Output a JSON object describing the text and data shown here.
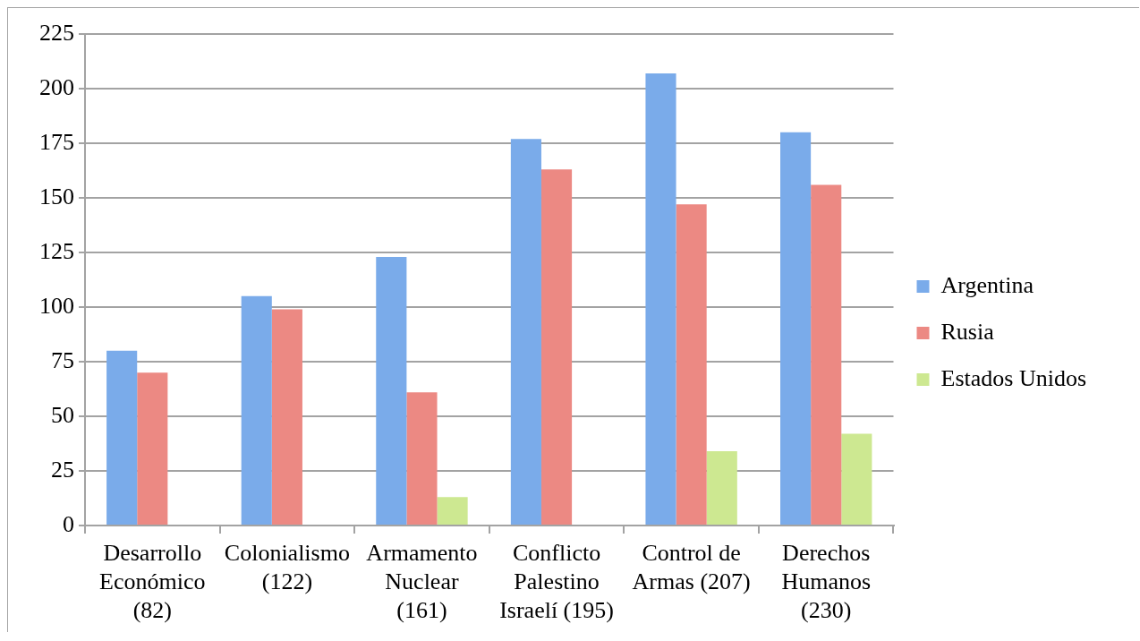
{
  "chart_data": {
    "type": "bar",
    "categories": [
      "Desarrollo Económico (82)",
      "Colonialismo (122)",
      "Armamento Nuclear (161)",
      "Conflicto Palestino Israelí (195)",
      "Control de Armas (207)",
      "Derechos Humanos (230)"
    ],
    "series": [
      {
        "name": "Argentina",
        "color": "#7aabea",
        "values": [
          80,
          105,
          123,
          177,
          207,
          180
        ]
      },
      {
        "name": "Rusia",
        "color": "#ec8983",
        "values": [
          70,
          99,
          61,
          163,
          147,
          156
        ]
      },
      {
        "name": "Estados Unidos",
        "color": "#cde891",
        "values": [
          null,
          null,
          13,
          null,
          34,
          42
        ]
      }
    ],
    "ylim": [
      0,
      225
    ],
    "yticks": [
      0,
      25,
      50,
      75,
      100,
      125,
      150,
      175,
      200,
      225
    ],
    "grid": "y",
    "legend": "right"
  }
}
